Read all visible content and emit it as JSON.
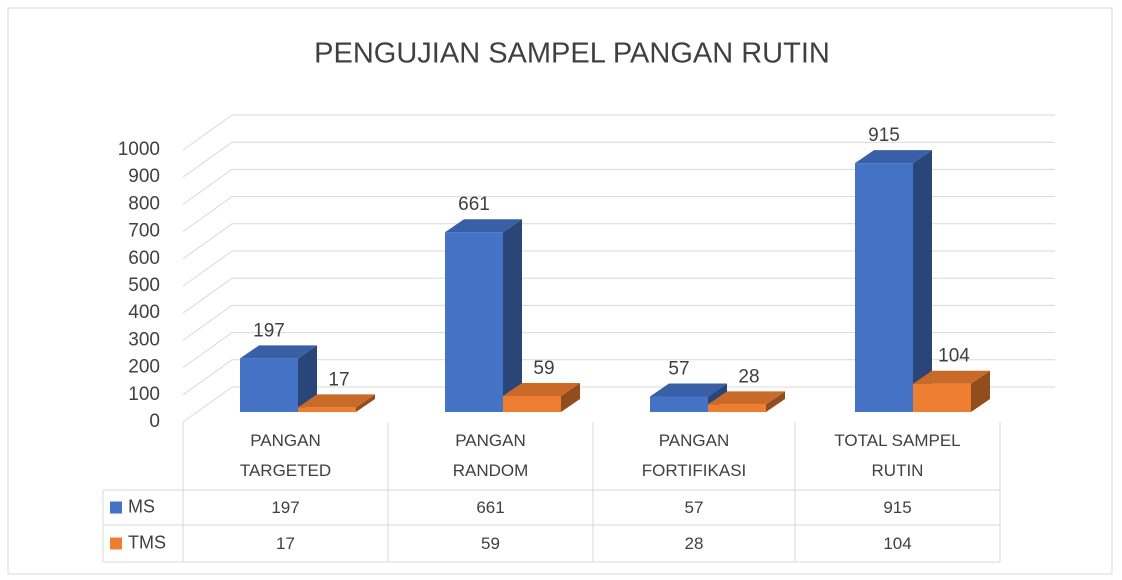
{
  "chart_data": {
    "type": "bar3d",
    "title": "PENGUJIAN SAMPEL PANGAN RUTIN",
    "categories": [
      "PANGAN TARGETED",
      "PANGAN RANDOM",
      "PANGAN FORTIFIKASI",
      "TOTAL SAMPEL RUTIN"
    ],
    "series": [
      {
        "name": "MS",
        "color": "#4472c4",
        "values": [
          197,
          661,
          57,
          915
        ]
      },
      {
        "name": "TMS",
        "color": "#ed7d31",
        "values": [
          17,
          59,
          28,
          104
        ]
      }
    ],
    "ylim": [
      0,
      1000
    ],
    "yticks": [
      0,
      100,
      200,
      300,
      400,
      500,
      600,
      700,
      800,
      900,
      1000
    ],
    "grid": true
  }
}
